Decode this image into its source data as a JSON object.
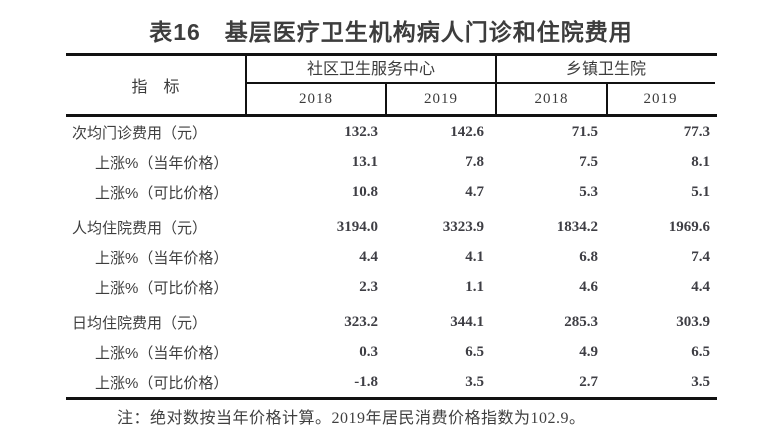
{
  "title": "表16　基层医疗卫生机构病人门诊和住院费用",
  "table": {
    "indicator_header": "指　标",
    "groups": [
      {
        "label": "社区卫生服务中心",
        "years": [
          "2018",
          "2019"
        ]
      },
      {
        "label": "乡镇卫生院",
        "years": [
          "2018",
          "2019"
        ]
      }
    ],
    "rows": [
      {
        "label": "次均门诊费用（元）",
        "indent": false,
        "values": [
          "132.3",
          "142.6",
          "71.5",
          "77.3"
        ]
      },
      {
        "label": "上涨%（当年价格）",
        "indent": true,
        "values": [
          "13.1",
          "7.8",
          "7.5",
          "8.1"
        ]
      },
      {
        "label": "上涨%（可比价格）",
        "indent": true,
        "values": [
          "10.8",
          "4.7",
          "5.3",
          "5.1"
        ]
      },
      {
        "label": "人均住院费用（元）",
        "indent": false,
        "values": [
          "3194.0",
          "3323.9",
          "1834.2",
          "1969.6"
        ]
      },
      {
        "label": "上涨%（当年价格）",
        "indent": true,
        "values": [
          "4.4",
          "4.1",
          "6.8",
          "7.4"
        ]
      },
      {
        "label": "上涨%（可比价格）",
        "indent": true,
        "values": [
          "2.3",
          "1.1",
          "4.6",
          "4.4"
        ]
      },
      {
        "label": "日均住院费用（元）",
        "indent": false,
        "values": [
          "323.2",
          "344.1",
          "285.3",
          "303.9"
        ]
      },
      {
        "label": "上涨%（当年价格）",
        "indent": true,
        "values": [
          "0.3",
          "6.5",
          "4.9",
          "6.5"
        ]
      },
      {
        "label": "上涨%（可比价格）",
        "indent": true,
        "values": [
          "-1.8",
          "3.5",
          "2.7",
          "3.5"
        ]
      }
    ]
  },
  "note": "注：绝对数按当年价格计算。2019年居民消费价格指数为102.9。",
  "colors": {
    "text": "#3e3e3e",
    "line": "#111111",
    "background": "#ffffff"
  },
  "chart_data": {
    "type": "table",
    "title": "表16　基层医疗卫生机构病人门诊和住院费用",
    "column_groups": [
      "社区卫生服务中心",
      "乡镇卫生院"
    ],
    "columns": [
      "社区卫生服务中心 2018",
      "社区卫生服务中心 2019",
      "乡镇卫生院 2018",
      "乡镇卫生院 2019"
    ],
    "rows": [
      {
        "indicator": "次均门诊费用（元）",
        "values": [
          132.3,
          142.6,
          71.5,
          77.3
        ]
      },
      {
        "indicator": "次均门诊费用上涨%（当年价格）",
        "values": [
          13.1,
          7.8,
          7.5,
          8.1
        ]
      },
      {
        "indicator": "次均门诊费用上涨%（可比价格）",
        "values": [
          10.8,
          4.7,
          5.3,
          5.1
        ]
      },
      {
        "indicator": "人均住院费用（元）",
        "values": [
          3194.0,
          3323.9,
          1834.2,
          1969.6
        ]
      },
      {
        "indicator": "人均住院费用上涨%（当年价格）",
        "values": [
          4.4,
          4.1,
          6.8,
          7.4
        ]
      },
      {
        "indicator": "人均住院费用上涨%（可比价格）",
        "values": [
          2.3,
          1.1,
          4.6,
          4.4
        ]
      },
      {
        "indicator": "日均住院费用（元）",
        "values": [
          323.2,
          344.1,
          285.3,
          303.9
        ]
      },
      {
        "indicator": "日均住院费用上涨%（当年价格）",
        "values": [
          0.3,
          6.5,
          4.9,
          6.5
        ]
      },
      {
        "indicator": "日均住院费用上涨%（可比价格）",
        "values": [
          -1.8,
          3.5,
          2.7,
          3.5
        ]
      }
    ],
    "footnote": "注：绝对数按当年价格计算。2019年居民消费价格指数为102.9。"
  }
}
